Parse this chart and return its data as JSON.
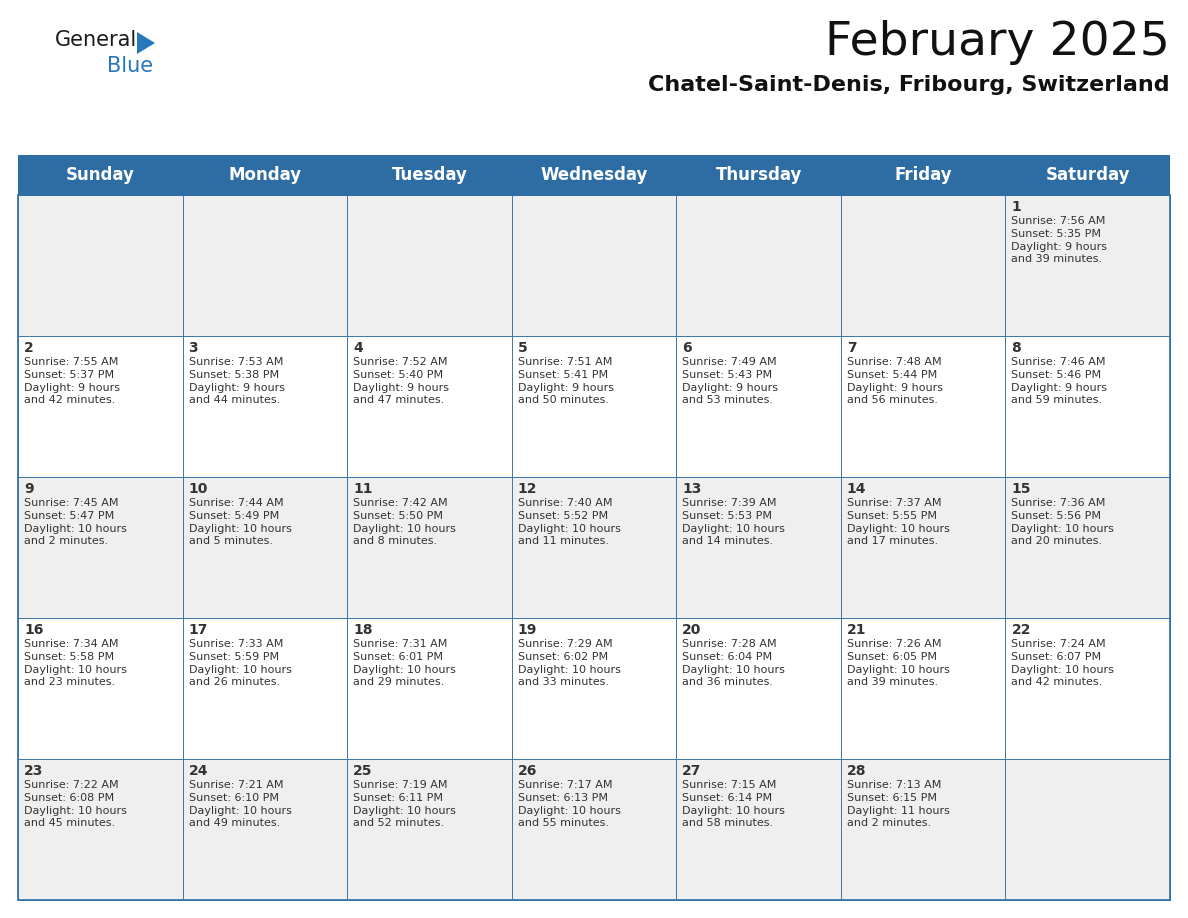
{
  "title": "February 2025",
  "subtitle": "Chatel-Saint-Denis, Fribourg, Switzerland",
  "header_color": "#2E6DA4",
  "header_text_color": "#FFFFFF",
  "cell_bg_white": "#FFFFFF",
  "cell_bg_gray": "#EFEFEF",
  "border_color": "#2E6DA4",
  "text_color": "#333333",
  "days_of_week": [
    "Sunday",
    "Monday",
    "Tuesday",
    "Wednesday",
    "Thursday",
    "Friday",
    "Saturday"
  ],
  "weeks": [
    [
      {
        "day": "",
        "info": ""
      },
      {
        "day": "",
        "info": ""
      },
      {
        "day": "",
        "info": ""
      },
      {
        "day": "",
        "info": ""
      },
      {
        "day": "",
        "info": ""
      },
      {
        "day": "",
        "info": ""
      },
      {
        "day": "1",
        "info": "Sunrise: 7:56 AM\nSunset: 5:35 PM\nDaylight: 9 hours\nand 39 minutes."
      }
    ],
    [
      {
        "day": "2",
        "info": "Sunrise: 7:55 AM\nSunset: 5:37 PM\nDaylight: 9 hours\nand 42 minutes."
      },
      {
        "day": "3",
        "info": "Sunrise: 7:53 AM\nSunset: 5:38 PM\nDaylight: 9 hours\nand 44 minutes."
      },
      {
        "day": "4",
        "info": "Sunrise: 7:52 AM\nSunset: 5:40 PM\nDaylight: 9 hours\nand 47 minutes."
      },
      {
        "day": "5",
        "info": "Sunrise: 7:51 AM\nSunset: 5:41 PM\nDaylight: 9 hours\nand 50 minutes."
      },
      {
        "day": "6",
        "info": "Sunrise: 7:49 AM\nSunset: 5:43 PM\nDaylight: 9 hours\nand 53 minutes."
      },
      {
        "day": "7",
        "info": "Sunrise: 7:48 AM\nSunset: 5:44 PM\nDaylight: 9 hours\nand 56 minutes."
      },
      {
        "day": "8",
        "info": "Sunrise: 7:46 AM\nSunset: 5:46 PM\nDaylight: 9 hours\nand 59 minutes."
      }
    ],
    [
      {
        "day": "9",
        "info": "Sunrise: 7:45 AM\nSunset: 5:47 PM\nDaylight: 10 hours\nand 2 minutes."
      },
      {
        "day": "10",
        "info": "Sunrise: 7:44 AM\nSunset: 5:49 PM\nDaylight: 10 hours\nand 5 minutes."
      },
      {
        "day": "11",
        "info": "Sunrise: 7:42 AM\nSunset: 5:50 PM\nDaylight: 10 hours\nand 8 minutes."
      },
      {
        "day": "12",
        "info": "Sunrise: 7:40 AM\nSunset: 5:52 PM\nDaylight: 10 hours\nand 11 minutes."
      },
      {
        "day": "13",
        "info": "Sunrise: 7:39 AM\nSunset: 5:53 PM\nDaylight: 10 hours\nand 14 minutes."
      },
      {
        "day": "14",
        "info": "Sunrise: 7:37 AM\nSunset: 5:55 PM\nDaylight: 10 hours\nand 17 minutes."
      },
      {
        "day": "15",
        "info": "Sunrise: 7:36 AM\nSunset: 5:56 PM\nDaylight: 10 hours\nand 20 minutes."
      }
    ],
    [
      {
        "day": "16",
        "info": "Sunrise: 7:34 AM\nSunset: 5:58 PM\nDaylight: 10 hours\nand 23 minutes."
      },
      {
        "day": "17",
        "info": "Sunrise: 7:33 AM\nSunset: 5:59 PM\nDaylight: 10 hours\nand 26 minutes."
      },
      {
        "day": "18",
        "info": "Sunrise: 7:31 AM\nSunset: 6:01 PM\nDaylight: 10 hours\nand 29 minutes."
      },
      {
        "day": "19",
        "info": "Sunrise: 7:29 AM\nSunset: 6:02 PM\nDaylight: 10 hours\nand 33 minutes."
      },
      {
        "day": "20",
        "info": "Sunrise: 7:28 AM\nSunset: 6:04 PM\nDaylight: 10 hours\nand 36 minutes."
      },
      {
        "day": "21",
        "info": "Sunrise: 7:26 AM\nSunset: 6:05 PM\nDaylight: 10 hours\nand 39 minutes."
      },
      {
        "day": "22",
        "info": "Sunrise: 7:24 AM\nSunset: 6:07 PM\nDaylight: 10 hours\nand 42 minutes."
      }
    ],
    [
      {
        "day": "23",
        "info": "Sunrise: 7:22 AM\nSunset: 6:08 PM\nDaylight: 10 hours\nand 45 minutes."
      },
      {
        "day": "24",
        "info": "Sunrise: 7:21 AM\nSunset: 6:10 PM\nDaylight: 10 hours\nand 49 minutes."
      },
      {
        "day": "25",
        "info": "Sunrise: 7:19 AM\nSunset: 6:11 PM\nDaylight: 10 hours\nand 52 minutes."
      },
      {
        "day": "26",
        "info": "Sunrise: 7:17 AM\nSunset: 6:13 PM\nDaylight: 10 hours\nand 55 minutes."
      },
      {
        "day": "27",
        "info": "Sunrise: 7:15 AM\nSunset: 6:14 PM\nDaylight: 10 hours\nand 58 minutes."
      },
      {
        "day": "28",
        "info": "Sunrise: 7:13 AM\nSunset: 6:15 PM\nDaylight: 11 hours\nand 2 minutes."
      },
      {
        "day": "",
        "info": ""
      }
    ]
  ],
  "logo_text_general": "General",
  "logo_text_blue": "Blue",
  "logo_color_general": "#1a1a1a",
  "logo_color_blue": "#2777BB",
  "logo_triangle_color": "#2777BB",
  "title_fontsize": 34,
  "subtitle_fontsize": 16,
  "header_fontsize": 12,
  "day_num_fontsize": 10,
  "cell_text_fontsize": 8,
  "logo_fontsize_general": 15,
  "logo_fontsize_blue": 15
}
